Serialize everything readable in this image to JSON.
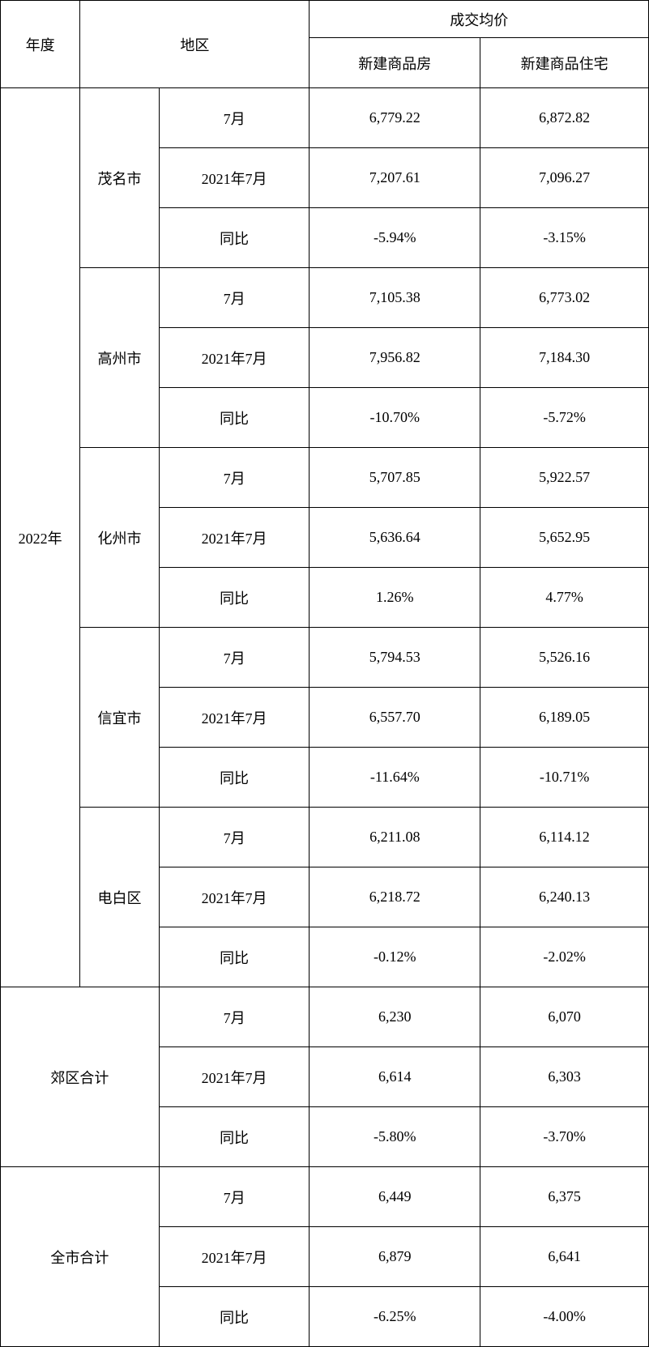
{
  "headers": {
    "year": "年度",
    "region": "地区",
    "price_group": "成交均价",
    "col1": "新建商品房",
    "col2": "新建商品住宅"
  },
  "year_label": "2022年",
  "period_labels": {
    "current": "7月",
    "prior": "2021年7月",
    "yoy": "同比"
  },
  "regions": [
    {
      "name": "茂名市",
      "rows": [
        {
          "v1": "6,779.22",
          "v2": "6,872.82"
        },
        {
          "v1": "7,207.61",
          "v2": "7,096.27"
        },
        {
          "v1": "-5.94%",
          "v2": "-3.15%"
        }
      ]
    },
    {
      "name": "高州市",
      "rows": [
        {
          "v1": "7,105.38",
          "v2": "6,773.02"
        },
        {
          "v1": "7,956.82",
          "v2": "7,184.30"
        },
        {
          "v1": "-10.70%",
          "v2": "-5.72%"
        }
      ]
    },
    {
      "name": "化州市",
      "rows": [
        {
          "v1": "5,707.85",
          "v2": "5,922.57"
        },
        {
          "v1": "5,636.64",
          "v2": "5,652.95"
        },
        {
          "v1": "1.26%",
          "v2": "4.77%"
        }
      ]
    },
    {
      "name": "信宜市",
      "rows": [
        {
          "v1": "5,794.53",
          "v2": "5,526.16"
        },
        {
          "v1": "6,557.70",
          "v2": "6,189.05"
        },
        {
          "v1": "-11.64%",
          "v2": "-10.71%"
        }
      ]
    },
    {
      "name": "电白区",
      "rows": [
        {
          "v1": "6,211.08",
          "v2": "6,114.12"
        },
        {
          "v1": "6,218.72",
          "v2": "6,240.13"
        },
        {
          "v1": "-0.12%",
          "v2": "-2.02%"
        }
      ]
    }
  ],
  "suburb_total": {
    "label": "郊区合计",
    "rows": [
      {
        "v1": "6,230",
        "v2": "6,070"
      },
      {
        "v1": "6,614",
        "v2": "6,303"
      },
      {
        "v1": "-5.80%",
        "v2": "-3.70%"
      }
    ]
  },
  "city_total": {
    "label": "全市合计",
    "rows": [
      {
        "v1": "6,449",
        "v2": "6,375"
      },
      {
        "v1": "6,879",
        "v2": "6,641"
      },
      {
        "v1": "-6.25%",
        "v2": "-4.00%"
      }
    ]
  },
  "style": {
    "border_color": "#000000",
    "background_color": "#ffffff",
    "font_family": "SimSun",
    "base_fontsize": 18
  }
}
